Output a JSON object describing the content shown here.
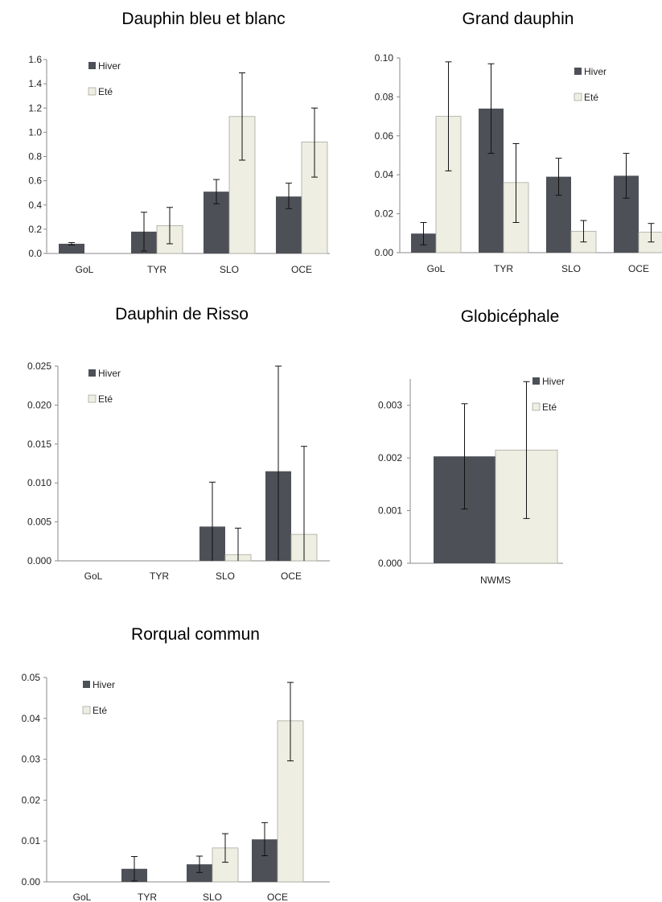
{
  "colors": {
    "hiver": "#4d5056",
    "ete": "#eeeee2",
    "ete_border": "#a9a9a0"
  },
  "chart_data": [
    {
      "type": "bar",
      "title": "Dauphin bleu et blanc",
      "categories": [
        "GoL",
        "TYR",
        "SLO",
        "OCE"
      ],
      "ylim": [
        0,
        1.6
      ],
      "yticks": [
        "0.0",
        "0.2",
        "0.4",
        "0.6",
        "0.8",
        "1.0",
        "1.2",
        "1.4",
        "1.6"
      ],
      "legend_position": "top-left",
      "series": [
        {
          "name": "Hiver",
          "values": [
            0.08,
            0.18,
            0.51,
            0.47
          ],
          "err_low": [
            0.07,
            0.02,
            0.41,
            0.37
          ],
          "err_high": [
            0.09,
            0.34,
            0.61,
            0.58
          ]
        },
        {
          "name": "Eté",
          "values": [
            0.0,
            0.23,
            1.13,
            0.92
          ],
          "err_low": [
            0.0,
            0.08,
            0.77,
            0.63
          ],
          "err_high": [
            0.0,
            0.38,
            1.49,
            1.2
          ]
        }
      ]
    },
    {
      "type": "bar",
      "title": "Grand dauphin",
      "categories": [
        "GoL",
        "TYR",
        "SLO",
        "OCE"
      ],
      "ylim": [
        0,
        0.1
      ],
      "yticks": [
        "0.00",
        "0.02",
        "0.04",
        "0.06",
        "0.08",
        "0.10"
      ],
      "legend_position": "top-right",
      "series": [
        {
          "name": "Hiver",
          "values": [
            0.0098,
            0.074,
            0.039,
            0.0395
          ],
          "err_low": [
            0.004,
            0.051,
            0.0295,
            0.028
          ],
          "err_high": [
            0.0155,
            0.097,
            0.0485,
            0.051
          ]
        },
        {
          "name": "Eté",
          "values": [
            0.07,
            0.036,
            0.011,
            0.0105
          ],
          "err_low": [
            0.042,
            0.0155,
            0.0055,
            0.0055
          ],
          "err_high": [
            0.098,
            0.056,
            0.0165,
            0.015
          ]
        }
      ]
    },
    {
      "type": "bar",
      "title": "Dauphin de Risso",
      "categories": [
        "GoL",
        "TYR",
        "SLO",
        "OCE"
      ],
      "ylim": [
        0,
        0.025
      ],
      "yticks": [
        "0.000",
        "0.005",
        "0.010",
        "0.015",
        "0.020",
        "0.025"
      ],
      "legend_position": "top-left",
      "series": [
        {
          "name": "Hiver",
          "values": [
            0,
            0,
            0.0044,
            0.0115
          ],
          "err_low": [
            0,
            0,
            0.0,
            0.0
          ],
          "err_high": [
            0,
            0,
            0.0101,
            0.025
          ]
        },
        {
          "name": "Eté",
          "values": [
            0,
            0,
            0.0008,
            0.0034
          ],
          "err_low": [
            0,
            0,
            0.0,
            0.0
          ],
          "err_high": [
            0,
            0,
            0.0042,
            0.0147
          ]
        }
      ]
    },
    {
      "type": "bar",
      "title": "Globicéphale",
      "categories": [
        "NWMS"
      ],
      "ylim": [
        0,
        0.0035
      ],
      "yticks": [
        "0.000",
        "0.001",
        "0.002",
        "0.003"
      ],
      "legend_position": "top-right",
      "series": [
        {
          "name": "Hiver",
          "values": [
            0.00203
          ],
          "err_low": [
            0.00103
          ],
          "err_high": [
            0.00303
          ]
        },
        {
          "name": "Eté",
          "values": [
            0.00215
          ],
          "err_low": [
            0.00085
          ],
          "err_high": [
            0.00345
          ]
        }
      ]
    },
    {
      "type": "bar",
      "title": "Rorqual commun",
      "categories": [
        "GoL",
        "TYR",
        "SLO",
        "OCE"
      ],
      "ylim": [
        0,
        0.05
      ],
      "yticks": [
        "0.00",
        "0.01",
        "0.02",
        "0.03",
        "0.04",
        "0.05"
      ],
      "legend_position": "top-left",
      "series": [
        {
          "name": "Hiver",
          "values": [
            0,
            0.0032,
            0.0043,
            0.0104
          ],
          "err_low": [
            0,
            0.0002,
            0.0023,
            0.0064
          ],
          "err_high": [
            0,
            0.0062,
            0.0063,
            0.0145
          ]
        },
        {
          "name": "Eté",
          "values": [
            0,
            0,
            0.0083,
            0.0394
          ],
          "err_low": [
            0,
            0,
            0.0048,
            0.0296
          ],
          "err_high": [
            0,
            0,
            0.0118,
            0.0488
          ]
        }
      ]
    }
  ]
}
